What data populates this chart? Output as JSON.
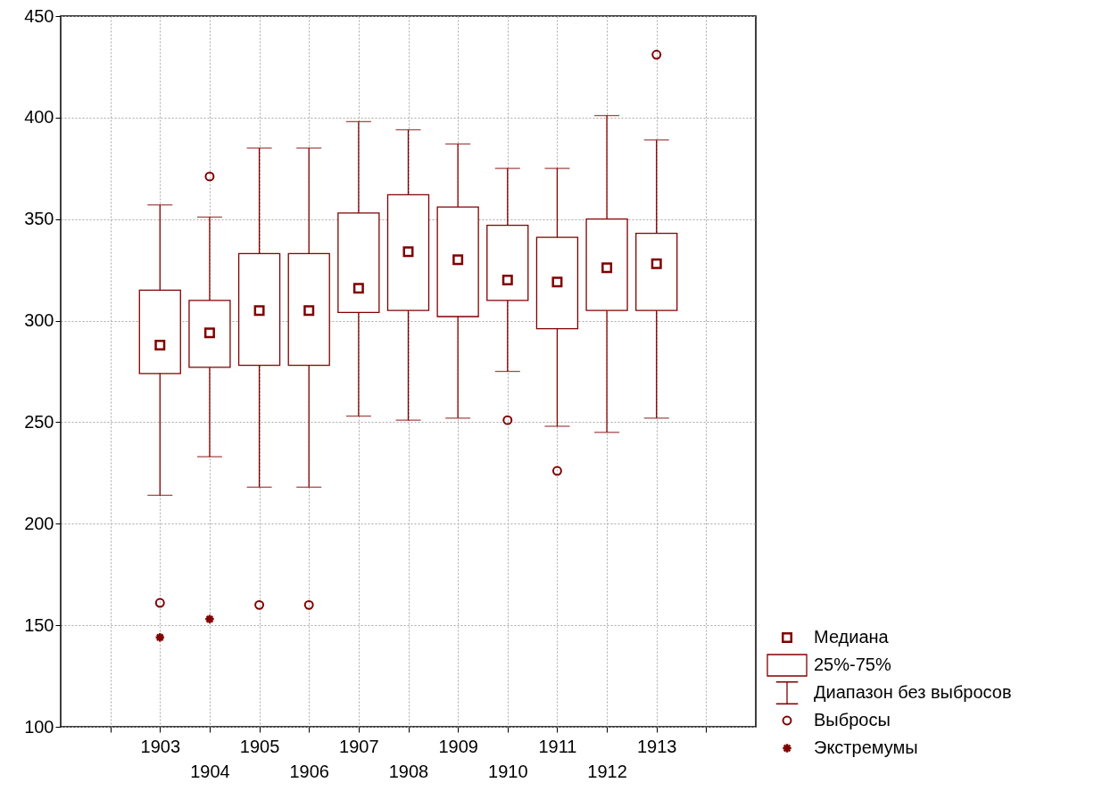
{
  "chart_data": {
    "type": "box",
    "color": "#800000",
    "categories": [
      null,
      "1903",
      "1904",
      "1905",
      "1906",
      "1907",
      "1908",
      "1909",
      "1910",
      "1911",
      "1912",
      "1913",
      null
    ],
    "boxes": [
      null,
      {
        "low": 214,
        "q1": 274,
        "median": 288,
        "q3": 315,
        "high": 357,
        "outliers": [
          161
        ]
      },
      {
        "low": 233,
        "q1": 277,
        "median": 294,
        "q3": 310,
        "high": 351,
        "outliers": [
          371
        ]
      },
      {
        "low": 218,
        "q1": 278,
        "median": 305,
        "q3": 333,
        "high": 385,
        "outliers": [
          160
        ]
      },
      {
        "low": 218,
        "q1": 278,
        "median": 305,
        "q3": 333,
        "high": 385,
        "outliers": [
          160
        ]
      },
      {
        "low": 253,
        "q1": 304,
        "median": 316,
        "q3": 353,
        "high": 398
      },
      {
        "low": 251,
        "q1": 305,
        "median": 334,
        "q3": 362,
        "high": 394
      },
      {
        "low": 252,
        "q1": 302,
        "median": 330,
        "q3": 356,
        "high": 387
      },
      {
        "low": 275,
        "q1": 310,
        "median": 320,
        "q3": 347,
        "high": 375,
        "outliers": [
          251
        ]
      },
      {
        "low": 248,
        "q1": 296,
        "median": 319,
        "q3": 341,
        "high": 375,
        "outliers": [
          226
        ]
      },
      {
        "low": 245,
        "q1": 305,
        "median": 326,
        "q3": 350,
        "high": 401
      },
      {
        "low": 252,
        "q1": 305,
        "median": 328,
        "q3": 343,
        "high": 389,
        "outliers": [
          431
        ]
      },
      null
    ],
    "series": [
      {
        "type": "scatter",
        "marker": "cross",
        "color": "#800000",
        "values": [
          null,
          144,
          153,
          null,
          null,
          null,
          null,
          null,
          null,
          null,
          null,
          null,
          null
        ]
      }
    ],
    "ylim": [
      100,
      450
    ],
    "yticks": [
      100,
      150,
      200,
      250,
      300,
      350,
      400,
      450
    ],
    "grid": true,
    "annotations": [
      "Медиана",
      "25%-75%",
      "Диапазон без выбросов",
      "Выбросы",
      "Экстремумы"
    ]
  }
}
